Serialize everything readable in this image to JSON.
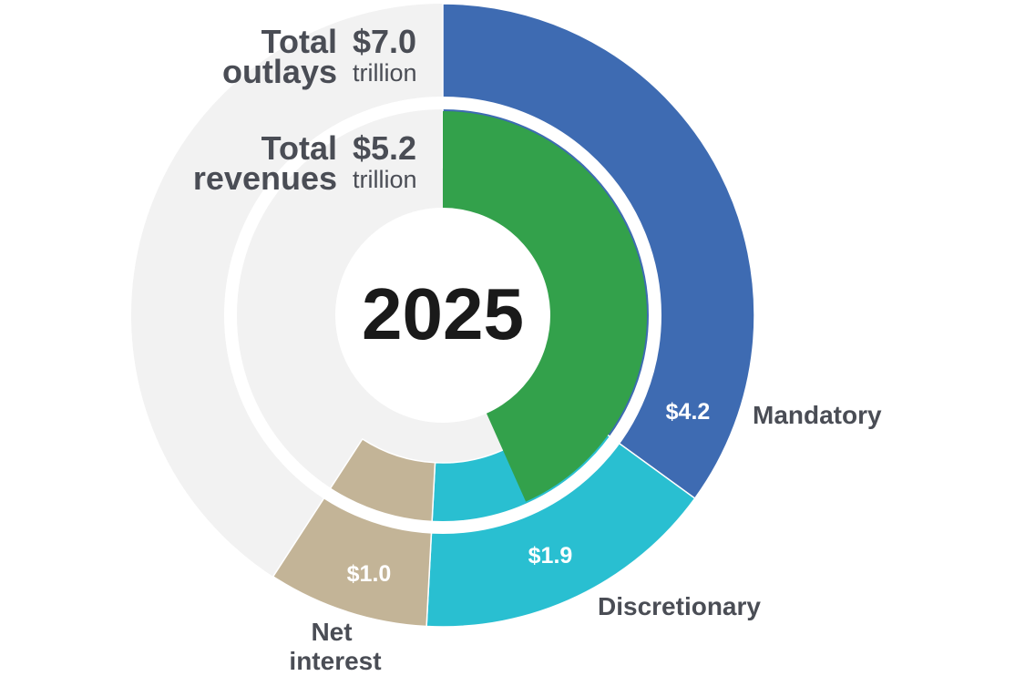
{
  "chart_data": {
    "type": "pie",
    "year": "2025",
    "outlays": {
      "label_line1": "Total",
      "label_line2": "outlays",
      "total_text": "$7.0",
      "unit_text": "trillion",
      "total": 7.0,
      "segments": [
        {
          "name": "Mandatory",
          "value": 4.2,
          "value_text": "$4.2",
          "color": "#3e6bb2"
        },
        {
          "name": "Discretionary",
          "value": 1.9,
          "value_text": "$1.9",
          "color": "#29bfd1"
        },
        {
          "name": "Net interest",
          "value": 1.0,
          "value_text": "$1.0",
          "color": "#c3b497"
        }
      ]
    },
    "revenues": {
      "label_line1": "Total",
      "label_line2": "revenues",
      "total_text": "$5.2",
      "unit_text": "trillion",
      "value": 5.2,
      "color": "#33a14b"
    },
    "background_color": "#f2f2f2",
    "text_color": "#4a4d55"
  }
}
